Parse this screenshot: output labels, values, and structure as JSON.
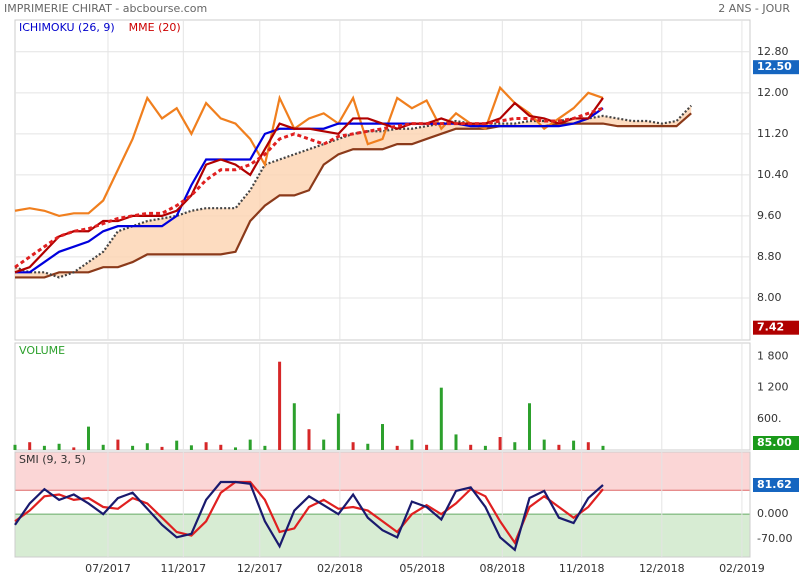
{
  "header": {
    "title": "IMPRIMERIE CHIRAT - abcbourse.com",
    "period": "2 ANS - JOUR"
  },
  "chart_data": [
    {
      "type": "line",
      "legend": [
        {
          "name": "ICHIMOKU (26, 9)",
          "color": "#0000cc"
        },
        {
          "name": "MME (20)",
          "color": "#cc0000"
        }
      ],
      "x": [
        0,
        2,
        4,
        6,
        8,
        10,
        12,
        14,
        16,
        18,
        20,
        22,
        24,
        26,
        28,
        30,
        32,
        34,
        36,
        38,
        40,
        42,
        44,
        46,
        48,
        50,
        52,
        54,
        56,
        58,
        60,
        62,
        64,
        66,
        68,
        70,
        72,
        74,
        76,
        78,
        80,
        82,
        84,
        86,
        88,
        90,
        92
      ],
      "ylim": [
        7.18,
        13.42
      ],
      "yticks": [
        {
          "value": 8,
          "label": "8.00"
        },
        {
          "value": 8.8,
          "label": "8.80"
        },
        {
          "value": 9.6,
          "label": "9.60"
        },
        {
          "value": 10.4,
          "label": "10.40"
        },
        {
          "value": 11.2,
          "label": "11.20"
        },
        {
          "value": 12,
          "label": "12.00"
        },
        {
          "value": 12.8,
          "label": "12.80"
        }
      ],
      "grid": true,
      "cloud_color": "#fcd3b0",
      "series": [
        {
          "color": "#8b3a1a",
          "style": "solid",
          "values": [
            8.4,
            8.4,
            8.4,
            8.5,
            8.5,
            8.5,
            8.6,
            8.6,
            8.7,
            8.85,
            8.85,
            8.85,
            8.85,
            8.85,
            8.85,
            8.9,
            9.5,
            9.8,
            10.0,
            10.0,
            10.1,
            10.6,
            10.8,
            10.9,
            10.9,
            10.9,
            11.0,
            11.0,
            11.1,
            11.2,
            11.3,
            11.3,
            11.3,
            11.35,
            11.35,
            11.35,
            11.35,
            11.4,
            11.4,
            11.4,
            11.4,
            11.35,
            11.35,
            11.35,
            11.35,
            11.35,
            11.6
          ]
        },
        {
          "color": "#444444",
          "style": "dotted",
          "values": [
            8.6,
            8.5,
            8.5,
            8.4,
            8.5,
            8.7,
            8.9,
            9.3,
            9.4,
            9.5,
            9.55,
            9.6,
            9.7,
            9.75,
            9.75,
            9.75,
            10.1,
            10.6,
            10.7,
            10.8,
            10.9,
            11.0,
            11.1,
            11.2,
            11.25,
            11.25,
            11.3,
            11.3,
            11.35,
            11.4,
            11.45,
            11.4,
            11.4,
            11.4,
            11.4,
            11.45,
            11.45,
            11.45,
            11.5,
            11.5,
            11.55,
            11.5,
            11.45,
            11.45,
            11.4,
            11.45,
            11.75
          ]
        },
        {
          "color": "#f07f1e",
          "style": "solid",
          "values": [
            9.7,
            9.75,
            9.7,
            9.6,
            9.65,
            9.65,
            9.9,
            10.5,
            11.1,
            11.9,
            11.5,
            11.7,
            11.2,
            11.8,
            11.5,
            11.4,
            11.1,
            10.6,
            11.9,
            11.3,
            11.5,
            11.6,
            11.4,
            11.9,
            11.0,
            11.1,
            11.9,
            11.7,
            11.85,
            11.3,
            11.6,
            11.4,
            11.3,
            12.1,
            11.8,
            11.6,
            11.3,
            11.5,
            11.7,
            12.0,
            11.9,
            null,
            null,
            null,
            null,
            null,
            null
          ]
        },
        {
          "color": "#0000dd",
          "style": "solid",
          "values": [
            8.5,
            8.5,
            8.7,
            8.9,
            9.0,
            9.1,
            9.3,
            9.4,
            9.4,
            9.4,
            9.4,
            9.6,
            10.2,
            10.7,
            10.7,
            10.7,
            10.7,
            11.2,
            11.3,
            11.3,
            11.3,
            11.3,
            11.4,
            11.4,
            11.4,
            11.4,
            11.4,
            11.4,
            11.4,
            11.4,
            11.4,
            11.35,
            11.35,
            11.35,
            11.35,
            11.35,
            11.35,
            11.35,
            11.4,
            11.5,
            11.7,
            null,
            null,
            null,
            null,
            null,
            null
          ]
        },
        {
          "color": "#b00000",
          "style": "solid",
          "values": [
            8.5,
            8.6,
            8.9,
            9.2,
            9.3,
            9.3,
            9.5,
            9.5,
            9.6,
            9.6,
            9.6,
            9.7,
            10.0,
            10.6,
            10.7,
            10.6,
            10.4,
            10.9,
            11.4,
            11.3,
            11.3,
            11.25,
            11.2,
            11.5,
            11.5,
            11.4,
            11.3,
            11.4,
            11.4,
            11.5,
            11.4,
            11.4,
            11.4,
            11.5,
            11.8,
            11.55,
            11.5,
            11.4,
            11.5,
            11.5,
            11.9,
            null,
            null,
            null,
            null,
            null,
            null
          ]
        },
        {
          "color": "#e02020",
          "style": "dashed",
          "values": [
            8.6,
            8.8,
            9.0,
            9.2,
            9.3,
            9.35,
            9.45,
            9.55,
            9.6,
            9.65,
            9.65,
            9.8,
            10.0,
            10.3,
            10.5,
            10.5,
            10.6,
            10.8,
            11.1,
            11.2,
            11.1,
            11.0,
            11.15,
            11.2,
            11.25,
            11.3,
            11.35,
            11.4,
            11.4,
            11.4,
            11.4,
            11.4,
            11.4,
            11.45,
            11.5,
            11.5,
            11.45,
            11.45,
            11.5,
            11.6,
            11.7,
            null,
            null,
            null,
            null,
            null,
            null
          ]
        }
      ],
      "last_labels": [
        {
          "value": 12.5,
          "label": "12.50",
          "color": "#1565c0"
        },
        {
          "value": 7.42,
          "label": "7.42",
          "color": "#b00000"
        }
      ]
    },
    {
      "type": "bar",
      "title": "VOLUME",
      "title_color": "#2ca02c",
      "x": [
        0,
        2,
        4,
        6,
        8,
        10,
        12,
        14,
        16,
        18,
        20,
        22,
        24,
        26,
        28,
        30,
        32,
        34,
        36,
        38,
        40,
        42,
        44,
        46,
        48,
        50,
        52,
        54,
        56,
        58,
        60,
        62,
        64,
        66,
        68,
        70,
        72,
        74,
        76,
        78,
        80
      ],
      "values": [
        100,
        150,
        80,
        120,
        50,
        450,
        100,
        200,
        80,
        130,
        60,
        180,
        90,
        150,
        100,
        50,
        200,
        80,
        1700,
        900,
        400,
        200,
        700,
        150,
        120,
        500,
        80,
        200,
        100,
        1200,
        300,
        100,
        80,
        250,
        150,
        900,
        200,
        100,
        180,
        150,
        80
      ],
      "colors": [
        "#2ca02c",
        "#d62728",
        "#2ca02c",
        "#2ca02c",
        "#d62728",
        "#2ca02c",
        "#2ca02c",
        "#d62728",
        "#2ca02c",
        "#2ca02c",
        "#d62728",
        "#2ca02c",
        "#2ca02c",
        "#d62728",
        "#d62728",
        "#2ca02c",
        "#2ca02c",
        "#2ca02c",
        "#d62728",
        "#2ca02c",
        "#d62728",
        "#2ca02c",
        "#2ca02c",
        "#d62728",
        "#2ca02c",
        "#2ca02c",
        "#d62728",
        "#2ca02c",
        "#d62728",
        "#2ca02c",
        "#2ca02c",
        "#d62728",
        "#2ca02c",
        "#d62728",
        "#2ca02c",
        "#2ca02c",
        "#2ca02c",
        "#d62728",
        "#2ca02c",
        "#d62728",
        "#2ca02c"
      ],
      "ylim": [
        0,
        2060
      ],
      "yticks": [
        {
          "value": 600,
          "label": "600."
        },
        {
          "value": 1200,
          "label": "1 200"
        },
        {
          "value": 1800,
          "label": "1 800"
        }
      ],
      "last_labels": [
        {
          "value": 85,
          "label": "85.00",
          "color": "#1a9a1a"
        }
      ]
    },
    {
      "type": "line",
      "title": "SMI (9, 3, 5)",
      "x": [
        0,
        2,
        4,
        6,
        8,
        10,
        12,
        14,
        16,
        18,
        20,
        22,
        24,
        26,
        28,
        30,
        32,
        34,
        36,
        38,
        40,
        42,
        44,
        46,
        48,
        50,
        52,
        54,
        56,
        58,
        60,
        62,
        64,
        66,
        68,
        70,
        72,
        74,
        76,
        78,
        80
      ],
      "ylim": [
        -120,
        174
      ],
      "yticks": [
        {
          "value": -70,
          "label": "-70.00"
        },
        {
          "value": 0,
          "label": "0.000"
        }
      ],
      "zones": {
        "upper": 67,
        "lower": 0,
        "upper_color": "#fbd6d6",
        "lower_color": "#d7ecd3"
      },
      "xlim": [
        0,
        100
      ],
      "xticks": [
        {
          "value": 12.65,
          "label": "07/2017"
        },
        {
          "value": 22.9,
          "label": "11/2017"
        },
        {
          "value": 33.3,
          "label": "12/2017"
        },
        {
          "value": 44.2,
          "label": "02/2018"
        },
        {
          "value": 55.4,
          "label": "05/2018"
        },
        {
          "value": 66.3,
          "label": "08/2018"
        },
        {
          "value": 77.1,
          "label": "11/2018"
        },
        {
          "value": 88,
          "label": "12/2018"
        },
        {
          "value": 98.9,
          "label": "02/2019"
        }
      ],
      "series": [
        {
          "color": "#e02020",
          "values": [
            -20,
            10,
            50,
            55,
            40,
            45,
            20,
            15,
            45,
            30,
            -10,
            -50,
            -60,
            -20,
            60,
            90,
            90,
            40,
            -50,
            -40,
            20,
            40,
            15,
            20,
            10,
            -20,
            -50,
            0,
            25,
            0,
            30,
            70,
            50,
            -20,
            -80,
            20,
            50,
            20,
            -10,
            20,
            70
          ]
        },
        {
          "color": "#1a1a6e",
          "values": [
            -30,
            30,
            70,
            40,
            55,
            30,
            0,
            45,
            60,
            15,
            -30,
            -65,
            -55,
            40,
            90,
            90,
            85,
            -20,
            -90,
            10,
            50,
            25,
            0,
            55,
            -10,
            -45,
            -65,
            35,
            20,
            -15,
            65,
            75,
            20,
            -65,
            -100,
            45,
            65,
            -10,
            -25,
            45,
            81.62
          ]
        }
      ],
      "last_labels": [
        {
          "value": 81.62,
          "label": "81.62",
          "color": "#1565c0"
        }
      ]
    }
  ]
}
